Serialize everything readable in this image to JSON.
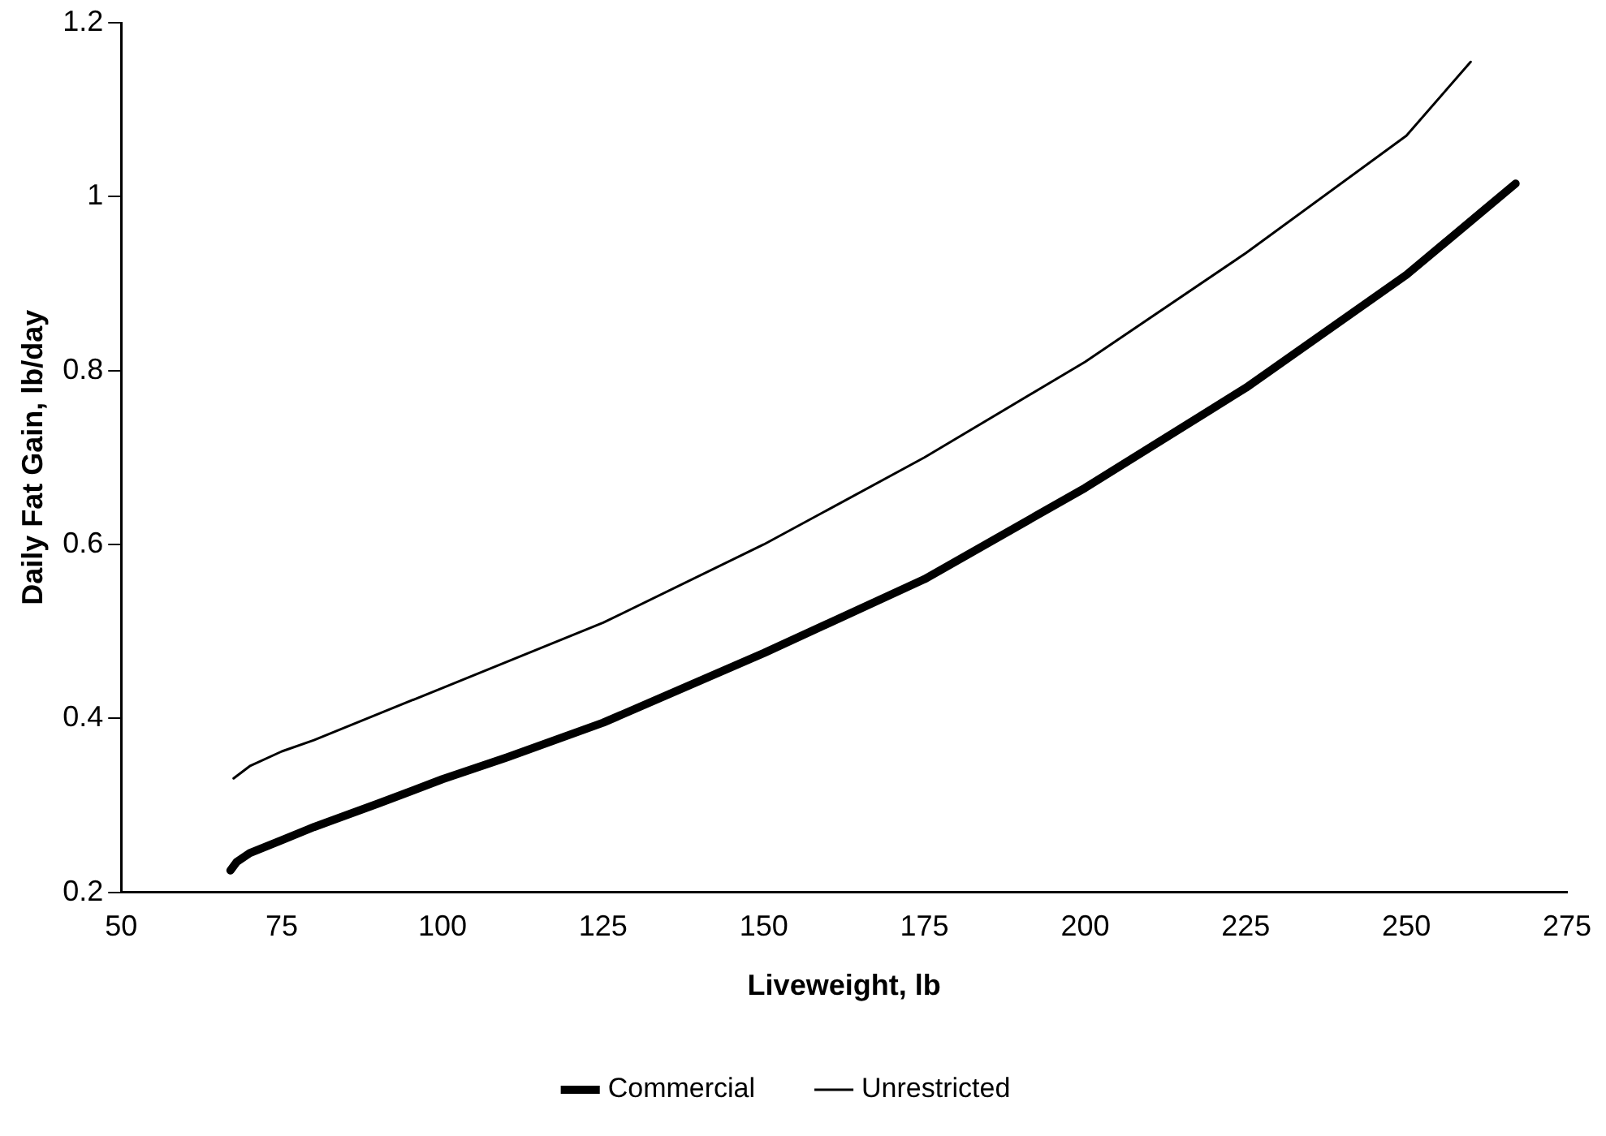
{
  "chart_data": {
    "type": "line",
    "xlabel": "Liveweight, lb",
    "ylabel": "Daily Fat Gain, lb/day",
    "xlim": [
      50,
      275
    ],
    "xticks": [
      50,
      75,
      100,
      125,
      150,
      175,
      200,
      225,
      250,
      275
    ],
    "ylim": [
      0.2,
      1.2
    ],
    "yticks": [
      0.2,
      0.4,
      0.6,
      0.8,
      1,
      1.2
    ],
    "grid": false,
    "legend": "bottom",
    "marker": "none",
    "line_style": "solid",
    "series": [
      {
        "name": "Commercial",
        "color": "#000000",
        "x": [
          67,
          68,
          70,
          75,
          80,
          90,
          100,
          110,
          125,
          150,
          175,
          200,
          225,
          250,
          267
        ],
        "values": [
          0.225,
          0.235,
          0.245,
          0.26,
          0.275,
          0.302,
          0.33,
          0.355,
          0.395,
          0.475,
          0.56,
          0.665,
          0.78,
          0.91,
          1.015
        ]
      },
      {
        "name": "Unrestricted",
        "color": "#000000",
        "x": [
          67.5,
          70,
          75,
          80,
          90,
          100,
          125,
          150,
          175,
          200,
          225,
          250,
          260
        ],
        "values": [
          0.331,
          0.345,
          0.362,
          0.375,
          0.405,
          0.435,
          0.51,
          0.6,
          0.7,
          0.81,
          0.935,
          1.07,
          1.155
        ]
      }
    ]
  }
}
